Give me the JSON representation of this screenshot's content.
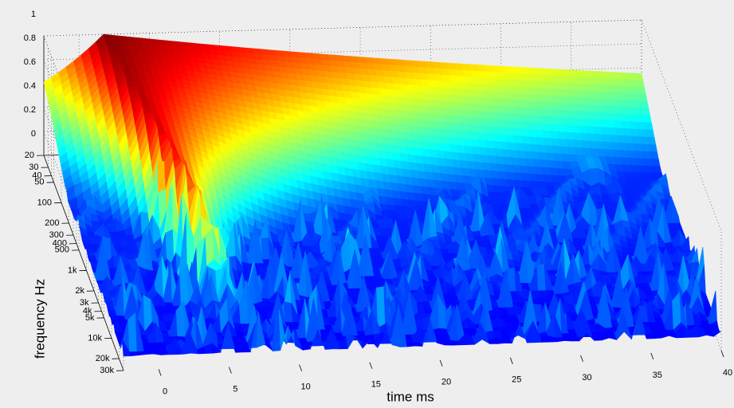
{
  "chart_data": {
    "type": "surface",
    "xlabel": "time   ms",
    "ylabel": "frequency   Hz",
    "xlim": [
      -2.5,
      40
    ],
    "xticks": [
      0,
      5,
      10,
      15,
      20,
      25,
      30,
      35,
      40
    ],
    "ylim": [
      20,
      30000
    ],
    "ylog": true,
    "yticks": [
      20,
      30,
      40,
      50,
      100,
      200,
      300,
      400,
      500,
      {
        "value": 1000,
        "label": "1k"
      },
      {
        "value": 2000,
        "label": "2k"
      },
      {
        "value": 3000,
        "label": "3k"
      },
      {
        "value": 4000,
        "label": "4k"
      },
      {
        "value": 5000,
        "label": "5k"
      },
      {
        "value": 10000,
        "label": "10k"
      },
      {
        "value": 20000,
        "label": "20k"
      },
      {
        "value": 30000,
        "label": "30k"
      }
    ],
    "zlim": [
      0,
      1
    ],
    "zticks": [
      0,
      0.2,
      0.4,
      0.6,
      0.8,
      1
    ],
    "colormap": "jet"
  }
}
